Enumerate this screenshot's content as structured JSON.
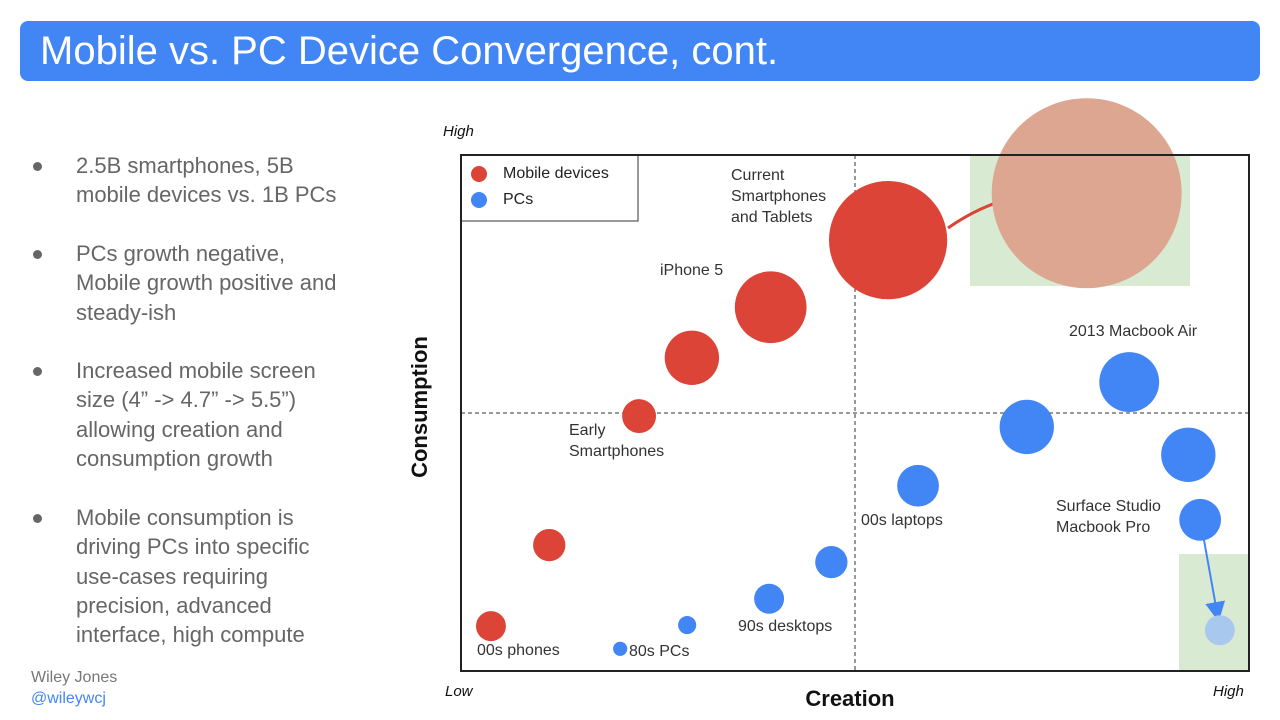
{
  "header": {
    "title": "Mobile vs. PC Device Convergence, cont."
  },
  "bullets": [
    [
      "2.5B smartphones, 5B",
      "mobile devices vs. 1B PCs"
    ],
    [
      "PCs growth negative,",
      "Mobile growth positive and",
      "steady-ish"
    ],
    [
      "Increased mobile screen",
      "size (4” -> 4.7” -> 5.5”)",
      "allowing creation and",
      "consumption growth"
    ],
    [
      "Mobile consumption is",
      "driving PCs into specific",
      "use-cases requiring",
      "precision, advanced",
      "interface, high compute"
    ]
  ],
  "footer": {
    "author": "Wiley Jones",
    "handle": "@wileywcj"
  },
  "chart_data": {
    "type": "bubble",
    "x_label": "Creation",
    "y_label": "Consumption",
    "xlim": [
      0,
      100
    ],
    "ylim": [
      0,
      100
    ],
    "xticks": [
      {
        "value": 0,
        "label": "Low"
      },
      {
        "value": 100,
        "label": "High"
      }
    ],
    "yticks": [
      {
        "value": 100,
        "label": "High"
      }
    ],
    "quadrant_lines": [
      50,
      50
    ],
    "legend": "top-left",
    "series": [
      {
        "name": "Mobile devices",
        "color": "#db4437",
        "x": [
          3.8,
          11.2,
          22.6,
          29.3,
          39.3,
          54.2,
          79.4
        ],
        "values": [
          8.7,
          24.4,
          49.4,
          60.7,
          70.5,
          83.5,
          92.6
        ],
        "sizes": [
          3.8,
          4.1,
          4.3,
          6.9,
          9.1,
          15.0,
          24.1
        ],
        "colors": [
          "#db4437",
          "#db4437",
          "#db4437",
          "#db4437",
          "#db4437",
          "#db4437",
          "#dca690"
        ]
      },
      {
        "name": "PCs",
        "color": "#4285f4",
        "x": [
          20.2,
          28.7,
          39.1,
          47.0,
          58.0,
          71.8,
          84.8,
          92.3,
          93.8,
          96.3
        ],
        "values": [
          4.3,
          8.9,
          14.0,
          21.1,
          35.9,
          47.3,
          56.0,
          41.9,
          29.3,
          7.9
        ],
        "sizes": [
          1.8,
          2.3,
          3.8,
          4.1,
          5.3,
          6.9,
          7.6,
          6.9,
          5.3,
          3.8
        ],
        "colors": [
          "#4285f4",
          "#4285f4",
          "#4285f4",
          "#4285f4",
          "#4285f4",
          "#4285f4",
          "#4285f4",
          "#4285f4",
          "#4285f4",
          "#a9c8ee"
        ]
      }
    ],
    "annotations": [
      [
        "Current",
        "Smartphones",
        "and Tablets"
      ],
      [
        "iPhone 5"
      ],
      [
        "Early",
        "Smartphones"
      ],
      [
        "00s phones"
      ],
      [
        "80s PCs"
      ],
      [
        "90s desktops"
      ],
      [
        "00s laptops"
      ],
      [
        "2013 Macbook Air"
      ],
      [
        "Surface Studio",
        "Macbook Pro"
      ]
    ]
  }
}
